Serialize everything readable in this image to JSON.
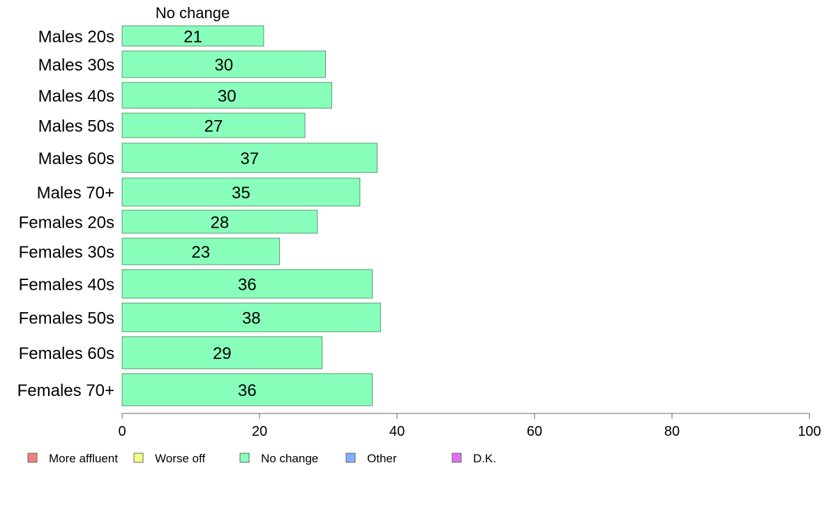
{
  "chart_data": {
    "type": "bar",
    "orientation": "horizontal",
    "column_header": "No change",
    "categories": [
      "Males 20s",
      "Males 30s",
      "Males 40s",
      "Males 50s",
      "Males 60s",
      "Males 70+",
      "Females 20s",
      "Females 30s",
      "Females 40s",
      "Females 50s",
      "Females 60s",
      "Females 70+"
    ],
    "series": [
      {
        "name": "No change",
        "color": "#88ffbb",
        "values": [
          21,
          30,
          30,
          27,
          37,
          35,
          28,
          23,
          36,
          38,
          29,
          36
        ],
        "bar_values": [
          20.6,
          29.6,
          30.5,
          26.6,
          37.1,
          34.6,
          28.4,
          22.9,
          36.4,
          37.6,
          29.1,
          36.4
        ]
      }
    ],
    "xlim": [
      0,
      100
    ],
    "xticks": [
      0,
      20,
      40,
      60,
      80,
      100
    ],
    "grid": false,
    "legend_position": "bottom",
    "legend": [
      {
        "label": "More affluent",
        "color": "#f08080"
      },
      {
        "label": "Worse off",
        "color": "#f0ff80"
      },
      {
        "label": "No change",
        "color": "#88ffbb"
      },
      {
        "label": "Other",
        "color": "#80b0ff"
      },
      {
        "label": "D.K.",
        "color": "#e070f0"
      }
    ],
    "bar_edge_color": "#5a9a72",
    "axis_color": "#666666"
  }
}
